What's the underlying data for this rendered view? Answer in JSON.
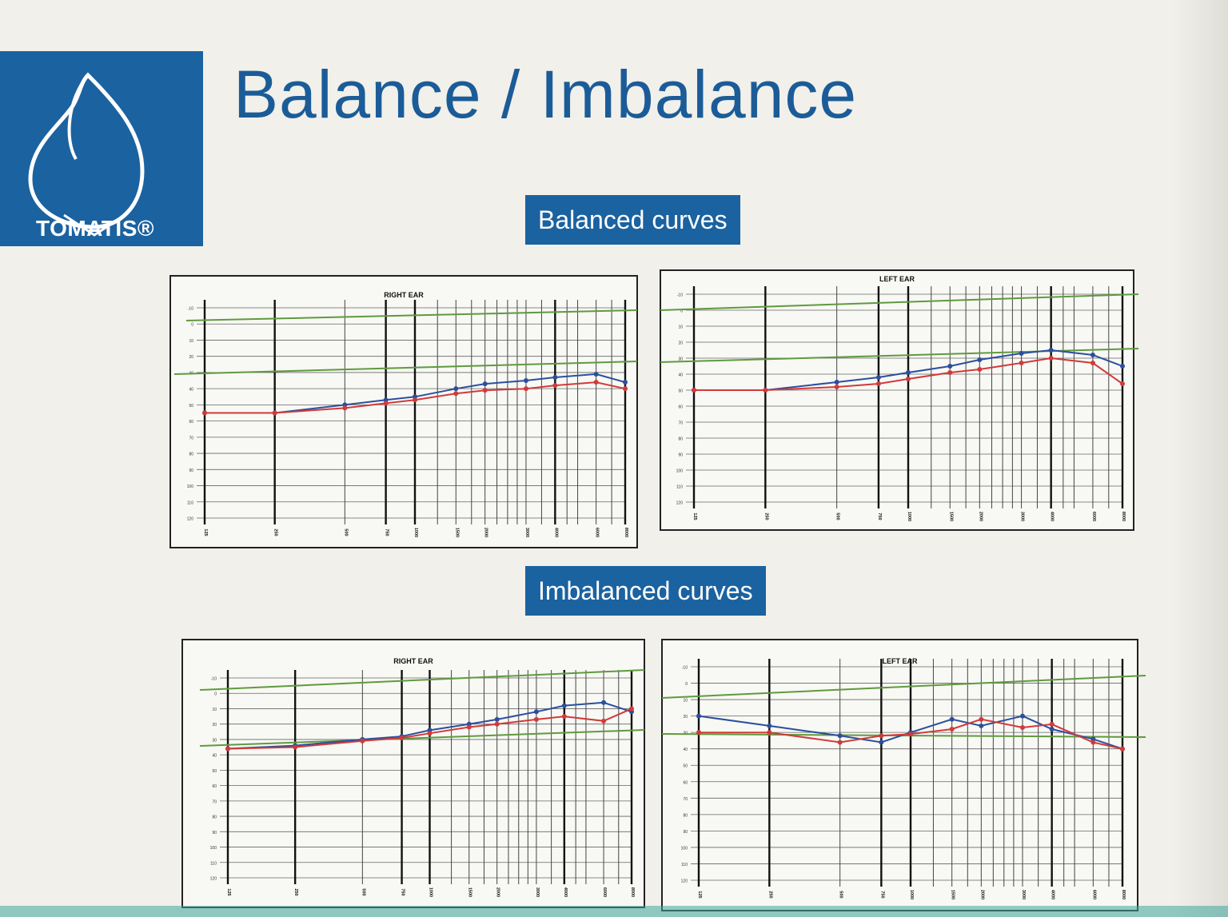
{
  "page": {
    "title": "Balance / Imbalance",
    "logo_text": "TOMATIS®",
    "sections": {
      "balanced": "Balanced curves",
      "imbalanced": "Imbalanced curves"
    },
    "colors": {
      "brand_blue": "#1b62a0",
      "title_blue": "#1b5c98",
      "air_conduction": "#2b4f9e",
      "bone_conduction": "#d13a3a",
      "reference_band": "#5f9a3e",
      "page_background": "#f1f0ea"
    }
  },
  "chart_data": [
    {
      "type": "line",
      "group": "Balanced curves",
      "title": "RIGHT EAR",
      "x": [
        125,
        250,
        500,
        750,
        1000,
        1500,
        2000,
        3000,
        4000,
        6000,
        8000
      ],
      "series": [
        {
          "values": [
            55,
            55,
            50,
            47,
            45,
            40,
            37,
            35,
            33,
            31,
            36
          ]
        },
        {
          "values": [
            55,
            55,
            52,
            49,
            47,
            43,
            41,
            40,
            38,
            36,
            40
          ]
        }
      ],
      "ylim": [
        -10,
        120
      ],
      "grid": true
    },
    {
      "type": "line",
      "group": "Balanced curves",
      "title": "LEFT EAR",
      "x": [
        125,
        250,
        500,
        750,
        1000,
        1500,
        2000,
        3000,
        4000,
        6000,
        8000
      ],
      "series": [
        {
          "values": [
            50,
            50,
            45,
            42,
            39,
            35,
            31,
            27,
            25,
            28,
            35
          ]
        },
        {
          "values": [
            50,
            50,
            48,
            46,
            43,
            39,
            37,
            33,
            30,
            33,
            46
          ]
        }
      ],
      "ylim": [
        -10,
        120
      ],
      "grid": true
    },
    {
      "type": "line",
      "group": "Imbalanced curves",
      "title": "RIGHT EAR",
      "x": [
        125,
        250,
        500,
        750,
        1000,
        1500,
        2000,
        3000,
        4000,
        6000,
        8000
      ],
      "series": [
        {
          "values": [
            36,
            34,
            30,
            28,
            24,
            20,
            17,
            12,
            8,
            6,
            12
          ]
        },
        {
          "values": [
            36,
            35,
            31,
            29,
            26,
            22,
            20,
            17,
            15,
            18,
            10
          ]
        }
      ],
      "ylim": [
        -10,
        120
      ],
      "grid": true
    },
    {
      "type": "line",
      "group": "Imbalanced curves",
      "title": "LEFT EAR",
      "x": [
        125,
        250,
        500,
        750,
        1000,
        1500,
        2000,
        3000,
        4000,
        6000,
        8000
      ],
      "series": [
        {
          "values": [
            20,
            26,
            32,
            36,
            30,
            22,
            26,
            20,
            28,
            34,
            40
          ]
        },
        {
          "values": [
            30,
            30,
            36,
            32,
            31,
            28,
            22,
            27,
            25,
            36,
            40
          ]
        }
      ],
      "ylim": [
        -10,
        120
      ],
      "grid": true
    }
  ]
}
